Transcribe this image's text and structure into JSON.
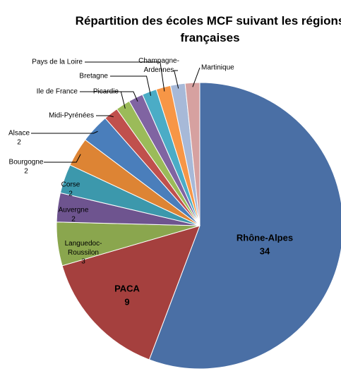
{
  "chart_data": {
    "type": "pie",
    "title": "Répartition des écoles MCF suivant les régions françaises",
    "categories": [
      "Rhône-Alpes",
      "PACA",
      "Languedoc-Roussilon",
      "Auvergne",
      "Corse",
      "Bourgogne",
      "Alsace",
      "Midi-Pyrénées",
      "Ile de France",
      "Picardie",
      "Bretagne",
      "Pays de la Loire",
      "Champagne-Ardennes",
      "Martinique"
    ],
    "values": [
      34,
      9,
      3,
      2,
      2,
      2,
      2,
      1,
      1,
      1,
      1,
      1,
      1,
      1
    ],
    "value_labels": [
      "34",
      "9",
      "3",
      "2",
      "2",
      "2",
      "2",
      null,
      null,
      null,
      null,
      null,
      null,
      null
    ],
    "colors": [
      "#4a6fa5",
      "#a5403e",
      "#8aa64e",
      "#6e548f",
      "#3c98ac",
      "#dd8434",
      "#4a7ebb",
      "#c0504d",
      "#9bbb59",
      "#8064a2",
      "#4bacc6",
      "#f79646",
      "#a7b9d8",
      "#d6a1a0"
    ]
  }
}
